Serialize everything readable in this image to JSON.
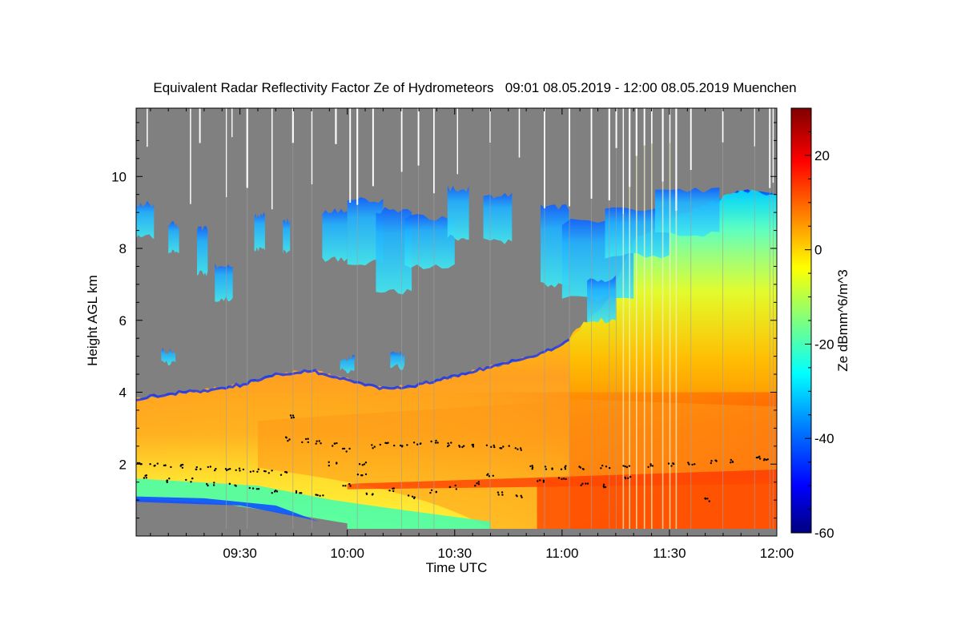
{
  "chart_data": {
    "type": "heatmap",
    "title": "Equivalent Radar Reflectivity Factor Ze of Hydrometeors   09:01 08.05.2019 - 12:00 08.05.2019 Muenchen",
    "xlabel": "Time UTC",
    "ylabel": "Height AGL km",
    "colorbar_label": "Ze dBmm^6/m^3",
    "x_range_minutes_utc": [
      541,
      720
    ],
    "y_range_km": [
      0.0,
      11.9
    ],
    "z_range_dbz": [
      -60,
      30
    ],
    "x_ticks": [
      {
        "minute": 570,
        "label": "09:30"
      },
      {
        "minute": 600,
        "label": "10:00"
      },
      {
        "minute": 630,
        "label": "10:30"
      },
      {
        "minute": 660,
        "label": "11:00"
      },
      {
        "minute": 690,
        "label": "11:30"
      },
      {
        "minute": 720,
        "label": "12:00"
      }
    ],
    "y_ticks": [
      {
        "value": 2,
        "label": "2"
      },
      {
        "value": 4,
        "label": "4"
      },
      {
        "value": 6,
        "label": "6"
      },
      {
        "value": 8,
        "label": "8"
      },
      {
        "value": 10,
        "label": "10"
      }
    ],
    "colorbar_ticks": [
      {
        "value": 20,
        "label": "20"
      },
      {
        "value": 0,
        "label": "0"
      },
      {
        "value": -20,
        "label": "-20"
      },
      {
        "value": -40,
        "label": "-40"
      },
      {
        "value": -60,
        "label": "-60"
      }
    ],
    "colormap": [
      "#00007f",
      "#0000ff",
      "#007fff",
      "#00ffff",
      "#7fff7f",
      "#ffff00",
      "#ff7f00",
      "#ff0000",
      "#7f0000"
    ],
    "background_color": "#808080",
    "cloud_top_km": [
      {
        "t": 541,
        "h": 3.8
      },
      {
        "t": 550,
        "h": 3.95
      },
      {
        "t": 560,
        "h": 4.05
      },
      {
        "t": 570,
        "h": 4.2
      },
      {
        "t": 580,
        "h": 4.5
      },
      {
        "t": 590,
        "h": 4.6
      },
      {
        "t": 600,
        "h": 4.35
      },
      {
        "t": 610,
        "h": 4.1
      },
      {
        "t": 620,
        "h": 4.2
      },
      {
        "t": 630,
        "h": 4.45
      },
      {
        "t": 640,
        "h": 4.7
      },
      {
        "t": 650,
        "h": 4.95
      },
      {
        "t": 660,
        "h": 5.3
      },
      {
        "t": 665,
        "h": 5.8
      },
      {
        "t": 672,
        "h": 6.4
      },
      {
        "t": 680,
        "h": 8.2
      },
      {
        "t": 690,
        "h": 8.8
      },
      {
        "t": 700,
        "h": 9.2
      },
      {
        "t": 710,
        "h": 9.6
      },
      {
        "t": 720,
        "h": 9.5
      }
    ],
    "series": [
      {
        "name": "",
        "style": "black-dots",
        "points": [
          {
            "t": 542,
            "h": 2.0
          },
          {
            "t": 546,
            "h": 2.0
          },
          {
            "t": 550,
            "h": 1.95
          },
          {
            "t": 554,
            "h": 1.95
          },
          {
            "t": 558,
            "h": 1.9
          },
          {
            "t": 562,
            "h": 1.88
          },
          {
            "t": 566,
            "h": 1.85
          },
          {
            "t": 570,
            "h": 1.85
          },
          {
            "t": 574,
            "h": 1.82
          },
          {
            "t": 578,
            "h": 1.8
          },
          {
            "t": 582,
            "h": 1.75
          },
          {
            "t": 584,
            "h": 2.7
          },
          {
            "t": 588,
            "h": 2.65
          },
          {
            "t": 592,
            "h": 2.6
          },
          {
            "t": 596,
            "h": 2.55
          },
          {
            "t": 600,
            "h": 2.4
          },
          {
            "t": 604,
            "h": 2.0
          },
          {
            "t": 608,
            "h": 2.5
          },
          {
            "t": 612,
            "h": 2.55
          },
          {
            "t": 616,
            "h": 2.5
          },
          {
            "t": 620,
            "h": 2.6
          },
          {
            "t": 624,
            "h": 2.6
          },
          {
            "t": 628,
            "h": 2.55
          },
          {
            "t": 632,
            "h": 2.5
          },
          {
            "t": 636,
            "h": 2.5
          },
          {
            "t": 640,
            "h": 2.5
          },
          {
            "t": 644,
            "h": 2.45
          },
          {
            "t": 648,
            "h": 2.4
          },
          {
            "t": 652,
            "h": 1.9
          },
          {
            "t": 656,
            "h": 1.9
          },
          {
            "t": 660,
            "h": 1.9
          },
          {
            "t": 666,
            "h": 1.9
          },
          {
            "t": 672,
            "h": 1.92
          },
          {
            "t": 678,
            "h": 1.95
          },
          {
            "t": 684,
            "h": 1.95
          },
          {
            "t": 690,
            "h": 2.0
          },
          {
            "t": 696,
            "h": 2.0
          },
          {
            "t": 702,
            "h": 2.05
          },
          {
            "t": 708,
            "h": 2.1
          },
          {
            "t": 714,
            "h": 2.2
          },
          {
            "t": 717,
            "h": 2.1
          },
          {
            "t": 544,
            "h": 1.65
          },
          {
            "t": 550,
            "h": 1.55
          },
          {
            "t": 556,
            "h": 1.55
          },
          {
            "t": 562,
            "h": 1.45
          },
          {
            "t": 568,
            "h": 1.4
          },
          {
            "t": 574,
            "h": 1.35
          },
          {
            "t": 580,
            "h": 1.25
          },
          {
            "t": 586,
            "h": 1.2
          },
          {
            "t": 592,
            "h": 1.1
          },
          {
            "t": 600,
            "h": 1.4
          },
          {
            "t": 606,
            "h": 1.2
          },
          {
            "t": 612,
            "h": 1.3
          },
          {
            "t": 618,
            "h": 1.1
          },
          {
            "t": 624,
            "h": 1.25
          },
          {
            "t": 630,
            "h": 1.35
          },
          {
            "t": 636,
            "h": 1.45
          },
          {
            "t": 642,
            "h": 1.2
          },
          {
            "t": 648,
            "h": 1.1
          },
          {
            "t": 654,
            "h": 1.55
          },
          {
            "t": 660,
            "h": 1.6
          },
          {
            "t": 666,
            "h": 1.45
          },
          {
            "t": 672,
            "h": 1.4
          },
          {
            "t": 678,
            "h": 1.6
          },
          {
            "t": 584,
            "h": 3.3
          },
          {
            "t": 596,
            "h": 2.0
          },
          {
            "t": 604,
            "h": 1.7
          },
          {
            "t": 640,
            "h": 1.7
          },
          {
            "t": 700,
            "h": 1.0
          }
        ]
      }
    ]
  }
}
